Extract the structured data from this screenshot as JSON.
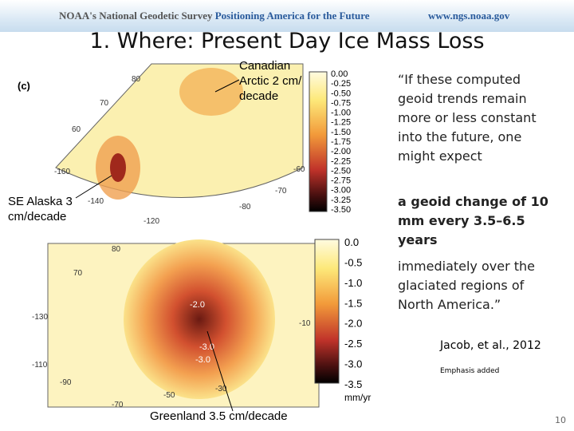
{
  "header": {
    "org": "NOAA's National Geodetic Survey",
    "tagline": "Positioning America for the Future",
    "url": "www.ngs.noaa.gov"
  },
  "title": "1. Where: Present Day Ice Mass Loss",
  "top_map": {
    "panel": "(c)",
    "colorbar_ticks": [
      "0.00",
      "-0.25",
      "-0.50",
      "-0.75",
      "-1.00",
      "-1.25",
      "-1.50",
      "-1.75",
      "-2.00",
      "-2.25",
      "-2.50",
      "-2.75",
      "-3.00",
      "-3.25",
      "-3.50"
    ],
    "graticule_labels": [
      "80",
      "70",
      "60",
      "-160",
      "-140",
      "-120",
      "-80",
      "-70",
      "-60"
    ],
    "callouts": [
      "Canadian Arctic 2 cm/ decade",
      "SE Alaska 3 cm/decade"
    ]
  },
  "bottom_map": {
    "colorbar_ticks": [
      "0.0",
      "-0.5",
      "-1.0",
      "-1.5",
      "-2.0",
      "-2.5",
      "-3.0",
      "-3.5"
    ],
    "units": "mm/yr",
    "graticule_labels": [
      "80",
      "70",
      "-130",
      "-110",
      "-90",
      "-70",
      "-50",
      "-30",
      "-10"
    ],
    "contour_labels": [
      "-2.0",
      "-3.0",
      "-3.0"
    ],
    "callout": "Greenland  3.5 cm/decade"
  },
  "quote": {
    "intro": "“If these computed geoid trends remain more or less constant into the future, one might expect",
    "emphasis": "a geoid change of 10 mm every 3.5–6.5 years",
    "ending": "immediately over the glaciated regions of North America.”"
  },
  "citation": "Jacob, et al., 2012",
  "note": "Emphasis added",
  "page_number": "10"
}
